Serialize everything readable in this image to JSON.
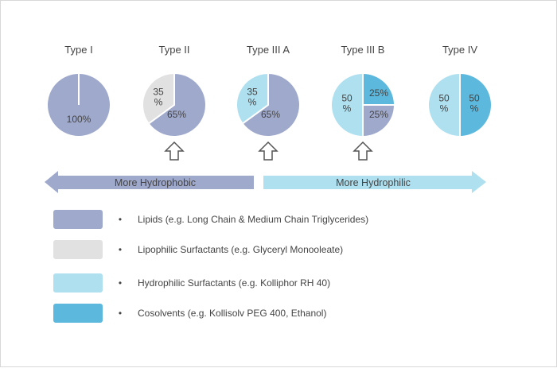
{
  "colors": {
    "lipids": "#9fa9cc",
    "lipophilic": "#e1e1e1",
    "hydrophilic": "#aee0f0",
    "cosolvents": "#5cb8dd",
    "arrow_left": "#9fa9cc",
    "arrow_right": "#aee0f0",
    "up_arrow_stroke": "#555555",
    "label_text": "#444444"
  },
  "chart_data": {
    "type": "pie",
    "charts": [
      {
        "title": "Type I",
        "slices": [
          {
            "component": "lipids",
            "value": 100,
            "label": "100%"
          }
        ]
      },
      {
        "title": "Type II",
        "slices": [
          {
            "component": "lipids",
            "value": 65,
            "label": "65%"
          },
          {
            "component": "lipophilic",
            "value": 35,
            "label": "35\n%"
          }
        ]
      },
      {
        "title": "Type III A",
        "slices": [
          {
            "component": "lipids",
            "value": 65,
            "label": "65%"
          },
          {
            "component": "hydrophilic",
            "value": 35,
            "label": "35\n%"
          }
        ]
      },
      {
        "title": "Type III B",
        "slices": [
          {
            "component": "cosolvents",
            "value": 25,
            "label": "25%"
          },
          {
            "component": "lipids",
            "value": 25,
            "label": "25%"
          },
          {
            "component": "hydrophilic",
            "value": 50,
            "label": "50\n%"
          }
        ]
      },
      {
        "title": "Type IV",
        "slices": [
          {
            "component": "cosolvents",
            "value": 50,
            "label": "50\n%"
          },
          {
            "component": "hydrophilic",
            "value": 50,
            "label": "50\n%"
          }
        ]
      }
    ],
    "legend": [
      {
        "component": "lipids",
        "text": "Lipids (e.g. Long Chain & Medium Chain Triglycerides)"
      },
      {
        "component": "lipophilic",
        "text": "Lipophilic Surfactants (e.g. Glyceryl Monooleate)"
      },
      {
        "component": "hydrophilic",
        "text": "Hydrophilic Surfactants (e.g. Kolliphor RH 40)"
      },
      {
        "component": "cosolvents",
        "text": "Cosolvents  (e.g. Kollisolv  PEG 400, Ethanol)"
      }
    ],
    "legend_bullet": "•",
    "scale": {
      "left_label": "More Hydrophobic",
      "right_label": "More Hydrophilic"
    }
  }
}
